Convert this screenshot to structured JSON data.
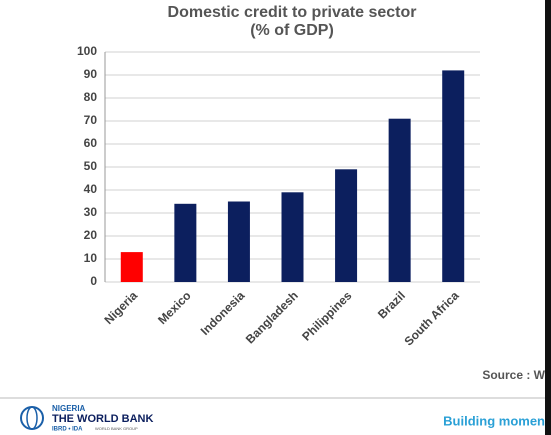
{
  "chart_data": {
    "type": "bar",
    "title": "Domestic credit to private sector",
    "subtitle": "(% of GDP)",
    "categories": [
      "Nigeria",
      "Mexico",
      "Indonesia",
      "Bangladesh",
      "Philippines",
      "Brazil",
      "South Africa"
    ],
    "values": [
      13,
      34,
      35,
      39,
      49,
      71,
      92
    ],
    "colors": [
      "#ff0000",
      "#0c1f5e",
      "#0c1f5e",
      "#0c1f5e",
      "#0c1f5e",
      "#0c1f5e",
      "#0c1f5e"
    ],
    "ylim": [
      0,
      100
    ],
    "yticks": [
      0,
      10,
      20,
      30,
      40,
      50,
      60,
      70,
      80,
      90,
      100
    ],
    "grid": true
  },
  "footer": {
    "source": "Source : W",
    "logo_country": "NIGERIA",
    "logo_name": "THE WORLD BANK",
    "logo_sub": "IBRD • IDA",
    "logo_group": "WORLD BANK GROUP",
    "tagline": "Building momen"
  }
}
